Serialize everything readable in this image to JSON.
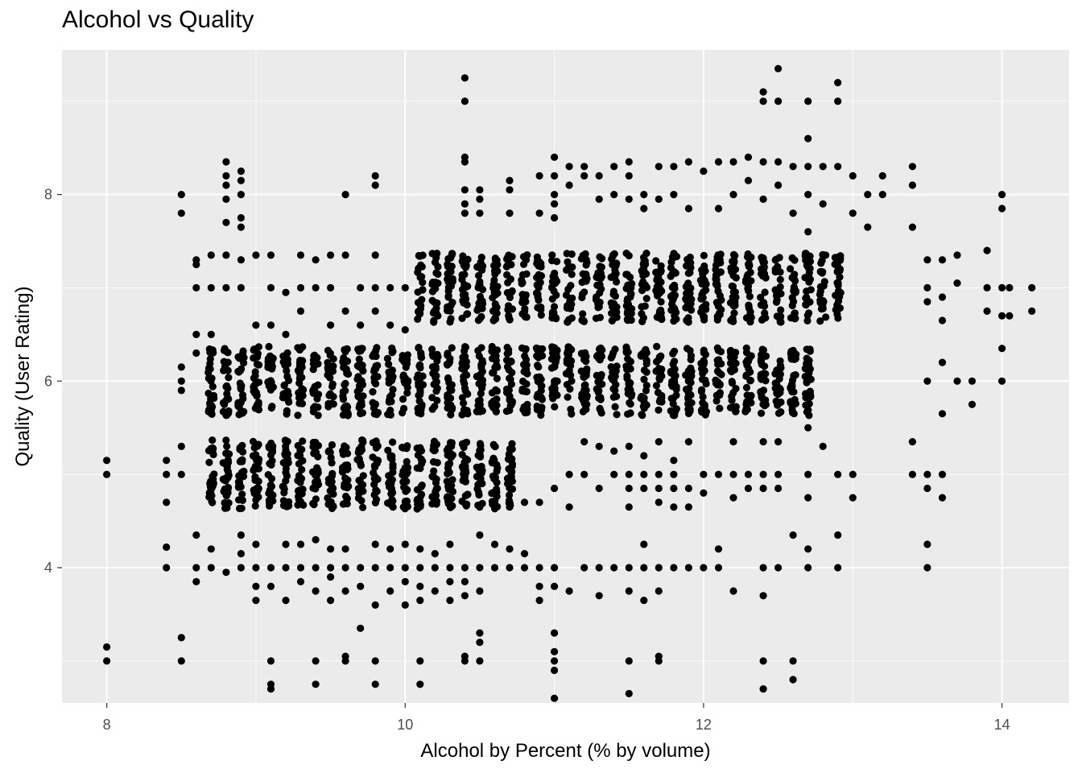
{
  "chart_data": {
    "type": "scatter",
    "title": "Alcohol vs Quality",
    "xlabel": "Alcohol by Percent (% by volume)",
    "ylabel": "Quality (User Rating)",
    "xlim": [
      7.7,
      14.45
    ],
    "ylim": [
      2.55,
      9.55
    ],
    "x_ticks": [
      8,
      10,
      12,
      14
    ],
    "x_tick_labels": [
      "8",
      "10",
      "12",
      "14"
    ],
    "y_ticks": [
      4,
      6,
      8
    ],
    "y_tick_labels": [
      "4",
      "6",
      "8"
    ],
    "grid": true,
    "jitter": "vertical jitter around integer quality values",
    "colors": {
      "panel": "#EBEBEB",
      "grid": "#FFFFFF",
      "point": "#000000",
      "tick_text": "#4D4D4D"
    },
    "dense_bands": [
      {
        "quality": 5,
        "x_from": 8.7,
        "x_to": 10.7,
        "spread": 0.37
      },
      {
        "quality": 6,
        "x_from": 8.7,
        "x_to": 12.7,
        "spread": 0.37
      },
      {
        "quality": 7,
        "x_from": 10.1,
        "x_to": 12.9,
        "spread": 0.37
      }
    ],
    "points": [
      [
        8.0,
        5.0
      ],
      [
        8.0,
        5.15
      ],
      [
        8.0,
        3.0
      ],
      [
        8.0,
        3.15
      ],
      [
        8.4,
        4.0
      ],
      [
        8.4,
        4.22
      ],
      [
        8.4,
        4.7
      ],
      [
        8.4,
        5.0
      ],
      [
        8.4,
        5.15
      ],
      [
        8.5,
        3.0
      ],
      [
        8.5,
        3.25
      ],
      [
        8.5,
        5.3
      ],
      [
        8.5,
        5.0
      ],
      [
        8.5,
        6.0
      ],
      [
        8.5,
        6.15
      ],
      [
        8.5,
        5.9
      ],
      [
        8.5,
        7.8
      ],
      [
        8.5,
        8.0
      ],
      [
        8.6,
        4.0
      ],
      [
        8.6,
        3.85
      ],
      [
        8.6,
        4.35
      ],
      [
        8.6,
        6.3
      ],
      [
        8.6,
        7.0
      ],
      [
        8.6,
        7.25
      ],
      [
        8.6,
        7.3
      ],
      [
        8.6,
        6.5
      ],
      [
        8.8,
        7.7
      ],
      [
        8.8,
        7.95
      ],
      [
        8.8,
        8.1
      ],
      [
        8.8,
        8.2
      ],
      [
        8.8,
        8.35
      ],
      [
        8.8,
        3.95
      ],
      [
        8.9,
        7.65
      ],
      [
        8.9,
        7.75
      ],
      [
        8.9,
        8.0
      ],
      [
        8.9,
        8.15
      ],
      [
        8.9,
        8.25
      ],
      [
        9.6,
        8.0
      ],
      [
        9.8,
        8.1
      ],
      [
        9.8,
        8.2
      ],
      [
        10.4,
        9.25
      ],
      [
        10.4,
        9.0
      ],
      [
        10.4,
        8.35
      ],
      [
        10.4,
        8.4
      ],
      [
        10.4,
        7.8
      ],
      [
        10.4,
        7.9
      ],
      [
        10.4,
        8.05
      ],
      [
        10.5,
        7.95
      ],
      [
        10.5,
        8.05
      ],
      [
        10.5,
        7.8
      ],
      [
        10.7,
        8.15
      ],
      [
        10.7,
        8.05
      ],
      [
        10.7,
        7.8
      ],
      [
        10.9,
        7.8
      ],
      [
        10.9,
        8.2
      ],
      [
        11.0,
        8.4
      ],
      [
        11.0,
        8.2
      ],
      [
        11.0,
        8.0
      ],
      [
        11.0,
        7.75
      ],
      [
        11.0,
        7.9
      ],
      [
        11.1,
        8.3
      ],
      [
        11.1,
        8.1
      ],
      [
        11.2,
        8.2
      ],
      [
        11.2,
        8.3
      ],
      [
        11.3,
        7.95
      ],
      [
        11.3,
        8.2
      ],
      [
        11.4,
        8.3
      ],
      [
        11.4,
        8.0
      ],
      [
        11.5,
        8.35
      ],
      [
        11.5,
        8.2
      ],
      [
        11.5,
        7.95
      ],
      [
        11.6,
        8.0
      ],
      [
        11.6,
        7.85
      ],
      [
        11.7,
        8.3
      ],
      [
        11.7,
        7.95
      ],
      [
        11.8,
        8.3
      ],
      [
        11.8,
        8.0
      ],
      [
        11.9,
        8.35
      ],
      [
        11.9,
        7.85
      ],
      [
        12.0,
        8.25
      ],
      [
        12.1,
        8.35
      ],
      [
        12.1,
        7.85
      ],
      [
        12.2,
        8.35
      ],
      [
        12.2,
        8.0
      ],
      [
        12.3,
        8.4
      ],
      [
        12.3,
        8.15
      ],
      [
        12.4,
        8.35
      ],
      [
        12.4,
        7.95
      ],
      [
        12.4,
        9.1
      ],
      [
        12.4,
        9.0
      ],
      [
        12.5,
        9.35
      ],
      [
        12.5,
        9.0
      ],
      [
        12.5,
        8.35
      ],
      [
        12.5,
        8.1
      ],
      [
        12.6,
        8.3
      ],
      [
        12.6,
        7.8
      ],
      [
        12.7,
        9.0
      ],
      [
        12.7,
        8.6
      ],
      [
        12.7,
        8.3
      ],
      [
        12.7,
        8.0
      ],
      [
        12.7,
        7.6
      ],
      [
        12.8,
        8.3
      ],
      [
        12.8,
        7.9
      ],
      [
        12.9,
        9.2
      ],
      [
        12.9,
        9.0
      ],
      [
        12.9,
        8.3
      ],
      [
        13.0,
        8.2
      ],
      [
        13.0,
        7.8
      ],
      [
        13.1,
        8.0
      ],
      [
        13.1,
        7.65
      ],
      [
        13.2,
        8.2
      ],
      [
        13.2,
        8.0
      ],
      [
        13.4,
        8.3
      ],
      [
        13.4,
        8.1
      ],
      [
        13.4,
        7.65
      ],
      [
        13.5,
        7.3
      ],
      [
        13.5,
        7.0
      ],
      [
        13.5,
        6.85
      ],
      [
        13.6,
        7.3
      ],
      [
        13.6,
        6.9
      ],
      [
        13.6,
        6.65
      ],
      [
        13.7,
        7.35
      ],
      [
        13.7,
        7.05
      ],
      [
        13.9,
        7.4
      ],
      [
        13.9,
        7.0
      ],
      [
        13.9,
        6.75
      ],
      [
        14.0,
        8.0
      ],
      [
        14.0,
        7.85
      ],
      [
        14.0,
        7.0
      ],
      [
        14.0,
        6.7
      ],
      [
        14.0,
        6.35
      ],
      [
        14.0,
        6.0
      ],
      [
        14.05,
        7.0
      ],
      [
        14.05,
        6.7
      ],
      [
        14.2,
        7.0
      ],
      [
        14.2,
        6.75
      ],
      [
        13.5,
        6.0
      ],
      [
        13.6,
        6.2
      ],
      [
        13.6,
        5.65
      ],
      [
        13.7,
        6.0
      ],
      [
        13.8,
        6.0
      ],
      [
        13.8,
        5.75
      ],
      [
        13.4,
        5.35
      ],
      [
        13.4,
        5.0
      ],
      [
        13.5,
        5.0
      ],
      [
        13.5,
        4.85
      ],
      [
        13.6,
        5.0
      ],
      [
        13.6,
        4.75
      ],
      [
        13.5,
        4.25
      ],
      [
        13.5,
        4.0
      ],
      [
        12.9,
        4.35
      ],
      [
        12.9,
        4.0
      ],
      [
        13.0,
        5.0
      ],
      [
        13.0,
        4.75
      ],
      [
        12.9,
        5.0
      ],
      [
        12.7,
        5.0
      ],
      [
        12.7,
        4.75
      ],
      [
        12.7,
        5.5
      ],
      [
        12.8,
        5.3
      ],
      [
        12.6,
        4.35
      ],
      [
        12.7,
        4.2
      ],
      [
        12.7,
        4.0
      ],
      [
        12.5,
        4.0
      ],
      [
        12.4,
        4.0
      ],
      [
        12.4,
        3.7
      ],
      [
        12.4,
        3.0
      ],
      [
        12.4,
        2.7
      ],
      [
        12.6,
        3.0
      ],
      [
        12.6,
        2.8
      ],
      [
        12.5,
        5.0
      ],
      [
        12.5,
        4.85
      ],
      [
        12.4,
        5.0
      ],
      [
        12.4,
        4.85
      ],
      [
        12.4,
        5.35
      ],
      [
        12.5,
        5.35
      ],
      [
        12.3,
        5.0
      ],
      [
        12.3,
        4.85
      ],
      [
        12.2,
        5.0
      ],
      [
        12.2,
        4.75
      ],
      [
        12.1,
        5.0
      ],
      [
        12.0,
        5.0
      ],
      [
        12.2,
        5.35
      ],
      [
        12.0,
        4.0
      ],
      [
        12.1,
        4.0
      ],
      [
        12.1,
        4.2
      ],
      [
        12.2,
        3.75
      ],
      [
        11.9,
        4.85
      ],
      [
        11.9,
        4.65
      ],
      [
        11.8,
        4.65
      ],
      [
        11.8,
        4.85
      ],
      [
        11.8,
        5.0
      ],
      [
        11.7,
        4.85
      ],
      [
        11.7,
        5.0
      ],
      [
        11.6,
        4.85
      ],
      [
        11.6,
        5.0
      ],
      [
        11.5,
        4.85
      ],
      [
        11.5,
        5.0
      ],
      [
        11.5,
        4.65
      ],
      [
        11.2,
        4.0
      ],
      [
        11.3,
        4.0
      ],
      [
        11.3,
        3.7
      ],
      [
        11.4,
        4.0
      ],
      [
        11.5,
        4.0
      ],
      [
        11.5,
        3.75
      ],
      [
        11.6,
        4.0
      ],
      [
        11.6,
        4.25
      ],
      [
        11.6,
        3.65
      ],
      [
        11.7,
        4.0
      ],
      [
        11.7,
        3.75
      ],
      [
        11.8,
        4.0
      ],
      [
        11.9,
        4.0
      ],
      [
        11.5,
        3.0
      ],
      [
        11.5,
        2.65
      ],
      [
        11.7,
        3.0
      ],
      [
        11.7,
        3.05
      ],
      [
        11.0,
        3.3
      ],
      [
        11.0,
        3.1
      ],
      [
        11.0,
        3.0
      ],
      [
        11.0,
        2.9
      ],
      [
        11.0,
        2.6
      ],
      [
        11.1,
        3.75
      ],
      [
        10.9,
        4.0
      ],
      [
        10.9,
        3.65
      ],
      [
        10.9,
        3.8
      ],
      [
        11.0,
        4.0
      ],
      [
        11.0,
        3.8
      ],
      [
        10.8,
        4.15
      ],
      [
        10.8,
        4.0
      ],
      [
        10.7,
        4.0
      ],
      [
        10.7,
        4.2
      ],
      [
        10.6,
        4.0
      ],
      [
        10.6,
        4.25
      ],
      [
        10.5,
        4.0
      ],
      [
        10.5,
        3.75
      ],
      [
        10.5,
        4.35
      ],
      [
        10.5,
        3.2
      ],
      [
        10.5,
        3.3
      ],
      [
        10.5,
        3.0
      ],
      [
        10.4,
        3.05
      ],
      [
        10.4,
        3.0
      ],
      [
        10.4,
        4.0
      ],
      [
        10.4,
        3.85
      ],
      [
        10.4,
        3.7
      ],
      [
        10.3,
        4.0
      ],
      [
        10.3,
        4.25
      ],
      [
        10.3,
        3.85
      ],
      [
        10.3,
        3.65
      ],
      [
        10.2,
        4.0
      ],
      [
        10.2,
        3.75
      ],
      [
        10.2,
        4.15
      ],
      [
        10.1,
        4.0
      ],
      [
        10.1,
        4.2
      ],
      [
        10.1,
        3.8
      ],
      [
        10.1,
        3.65
      ],
      [
        10.1,
        2.75
      ],
      [
        10.1,
        3.0
      ],
      [
        10.0,
        4.0
      ],
      [
        10.0,
        3.85
      ],
      [
        10.0,
        4.25
      ],
      [
        10.0,
        3.6
      ],
      [
        9.9,
        4.0
      ],
      [
        9.9,
        4.2
      ],
      [
        9.9,
        3.75
      ],
      [
        9.8,
        4.0
      ],
      [
        9.8,
        4.25
      ],
      [
        9.8,
        3.6
      ],
      [
        9.8,
        2.75
      ],
      [
        9.8,
        3.0
      ],
      [
        9.7,
        3.35
      ],
      [
        9.7,
        4.0
      ],
      [
        9.7,
        3.8
      ],
      [
        9.6,
        4.0
      ],
      [
        9.6,
        3.75
      ],
      [
        9.6,
        4.2
      ],
      [
        9.6,
        3.0
      ],
      [
        9.6,
        3.05
      ],
      [
        9.5,
        4.0
      ],
      [
        9.5,
        3.9
      ],
      [
        9.5,
        3.65
      ],
      [
        9.5,
        4.2
      ],
      [
        9.4,
        4.0
      ],
      [
        9.4,
        3.75
      ],
      [
        9.4,
        4.3
      ],
      [
        9.4,
        3.0
      ],
      [
        9.4,
        2.75
      ],
      [
        9.3,
        4.0
      ],
      [
        9.3,
        3.85
      ],
      [
        9.3,
        4.25
      ],
      [
        9.2,
        4.0
      ],
      [
        9.2,
        3.65
      ],
      [
        9.2,
        4.25
      ],
      [
        9.1,
        4.0
      ],
      [
        9.1,
        3.8
      ],
      [
        9.1,
        3.0
      ],
      [
        9.1,
        2.7
      ],
      [
        9.1,
        2.75
      ],
      [
        9.0,
        4.0
      ],
      [
        9.0,
        3.65
      ],
      [
        9.0,
        4.25
      ],
      [
        9.0,
        3.8
      ],
      [
        8.9,
        4.0
      ],
      [
        8.9,
        4.35
      ],
      [
        8.9,
        4.15
      ],
      [
        8.7,
        4.0
      ],
      [
        8.7,
        4.2
      ],
      [
        8.7,
        7.35
      ],
      [
        8.7,
        7.0
      ],
      [
        8.7,
        6.5
      ],
      [
        8.8,
        7.35
      ],
      [
        8.8,
        7.0
      ],
      [
        8.9,
        7.3
      ],
      [
        8.9,
        7.0
      ],
      [
        9.0,
        7.35
      ],
      [
        9.0,
        6.6
      ],
      [
        9.1,
        7.35
      ],
      [
        9.1,
        6.6
      ],
      [
        9.1,
        7.0
      ],
      [
        9.2,
        6.95
      ],
      [
        9.2,
        6.5
      ],
      [
        9.3,
        7.35
      ],
      [
        9.3,
        7.0
      ],
      [
        9.3,
        6.75
      ],
      [
        9.4,
        7.3
      ],
      [
        9.4,
        7.0
      ],
      [
        9.5,
        7.35
      ],
      [
        9.5,
        7.0
      ],
      [
        9.5,
        6.6
      ],
      [
        9.6,
        7.35
      ],
      [
        9.6,
        6.75
      ],
      [
        9.7,
        7.0
      ],
      [
        9.7,
        6.6
      ],
      [
        9.8,
        7.35
      ],
      [
        9.8,
        7.0
      ],
      [
        9.8,
        6.75
      ],
      [
        9.9,
        7.0
      ],
      [
        9.9,
        6.6
      ],
      [
        10.0,
        7.0
      ],
      [
        10.0,
        6.55
      ],
      [
        10.5,
        4.65
      ],
      [
        10.6,
        4.65
      ],
      [
        10.7,
        4.65
      ],
      [
        10.8,
        4.7
      ],
      [
        10.9,
        4.7
      ],
      [
        11.0,
        4.85
      ],
      [
        11.1,
        5.0
      ],
      [
        11.1,
        4.65
      ],
      [
        11.2,
        5.35
      ],
      [
        11.2,
        5.0
      ],
      [
        11.3,
        5.3
      ],
      [
        11.3,
        4.85
      ],
      [
        11.4,
        5.0
      ],
      [
        11.4,
        5.25
      ],
      [
        11.5,
        5.3
      ],
      [
        11.6,
        5.2
      ],
      [
        11.7,
        5.35
      ],
      [
        11.7,
        4.7
      ],
      [
        11.8,
        5.15
      ],
      [
        11.9,
        5.35
      ],
      [
        12.0,
        4.8
      ]
    ]
  }
}
